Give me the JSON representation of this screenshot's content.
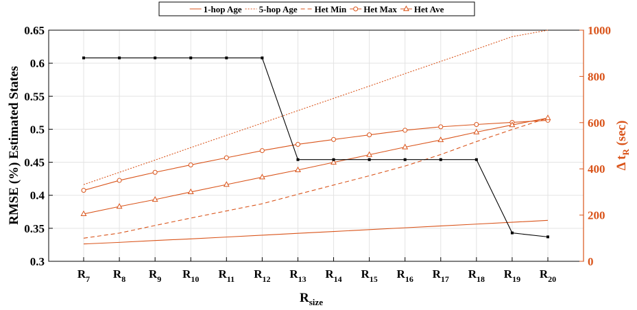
{
  "chart_data": {
    "type": "line",
    "title": "",
    "categories": [
      "R7",
      "R8",
      "R9",
      "R10",
      "R11",
      "R12",
      "R13",
      "R14",
      "R15",
      "R16",
      "R17",
      "R18",
      "R19",
      "R20"
    ],
    "x_ticks": [
      {
        "main": "R",
        "sub": "7"
      },
      {
        "main": "R",
        "sub": "8"
      },
      {
        "main": "R",
        "sub": "9"
      },
      {
        "main": "R",
        "sub": "10"
      },
      {
        "main": "R",
        "sub": "11"
      },
      {
        "main": "R",
        "sub": "12"
      },
      {
        "main": "R",
        "sub": "13"
      },
      {
        "main": "R",
        "sub": "14"
      },
      {
        "main": "R",
        "sub": "15"
      },
      {
        "main": "R",
        "sub": "16"
      },
      {
        "main": "R",
        "sub": "17"
      },
      {
        "main": "R",
        "sub": "18"
      },
      {
        "main": "R",
        "sub": "19"
      },
      {
        "main": "R",
        "sub": "20"
      }
    ],
    "xlabel": {
      "main": "R",
      "sub": "size"
    },
    "ylabel_left": "RMSE (%) Estimated States",
    "ylabel_right": {
      "main": "Δ t",
      "sub": "R",
      "tail": " (sec)"
    },
    "ylim_left": [
      0.3,
      0.65
    ],
    "yticks_left": [
      "0.3",
      "0.35",
      "0.4",
      "0.45",
      "0.5",
      "0.55",
      "0.6",
      "0.65"
    ],
    "ylim_right": [
      0,
      1000
    ],
    "yticks_right": [
      "0",
      "200",
      "400",
      "600",
      "800",
      "1000"
    ],
    "grid": true,
    "legend_position": "top-center",
    "colors": {
      "left_axis": "#000000",
      "right_axis": "#D95319"
    },
    "left_series": [
      {
        "values": [
          0.608,
          0.608,
          0.608,
          0.608,
          0.608,
          0.608,
          0.454,
          0.454,
          0.454,
          0.454,
          0.454,
          0.454,
          0.343,
          0.337
        ]
      }
    ],
    "right_series": [
      {
        "name": "1-hop Age",
        "style": "solid",
        "marker": "none",
        "values": [
          75,
          82,
          90,
          97,
          105,
          113,
          121,
          129,
          137,
          145,
          153,
          161,
          169,
          177
        ]
      },
      {
        "name": "5-hop Age",
        "style": "dotted",
        "marker": "none",
        "values": [
          332,
          385,
          438,
          492,
          545,
          598,
          652,
          705,
          758,
          812,
          865,
          918,
          972,
          1000
        ]
      },
      {
        "name": "Het Min",
        "style": "dashed",
        "marker": "none",
        "values": [
          100,
          122,
          155,
          187,
          218,
          249,
          290,
          330,
          370,
          412,
          462,
          518,
          570,
          620
        ]
      },
      {
        "name": "Het Max",
        "style": "solid",
        "marker": "circle",
        "values": [
          307,
          350,
          385,
          417,
          448,
          479,
          506,
          527,
          547,
          567,
          582,
          592,
          601,
          610
        ]
      },
      {
        "name": "Het Ave",
        "style": "solid",
        "marker": "triangle",
        "values": [
          205,
          237,
          267,
          300,
          332,
          364,
          395,
          428,
          461,
          494,
          525,
          559,
          590,
          620
        ]
      }
    ]
  }
}
